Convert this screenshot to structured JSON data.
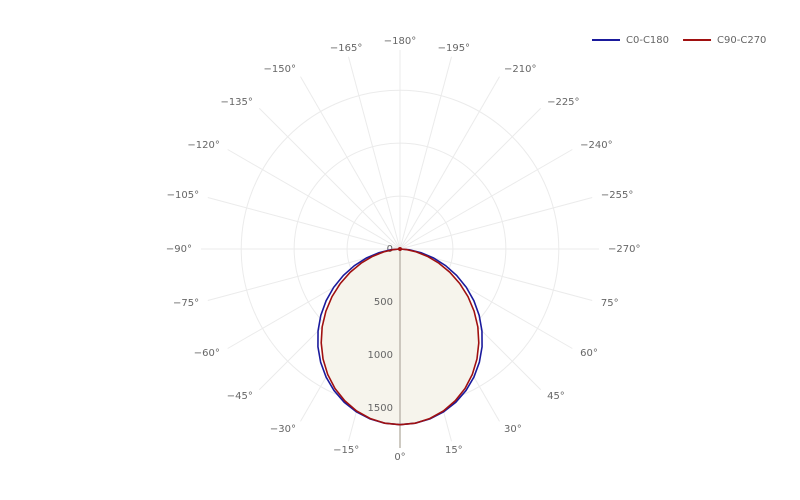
{
  "chart_data": {
    "type": "polar",
    "theta": [
      -90,
      -85,
      -80,
      -75,
      -70,
      -65,
      -60,
      -55,
      -50,
      -45,
      -40,
      -35,
      -30,
      -25,
      -20,
      -15,
      -10,
      -5,
      0,
      5,
      10,
      15,
      20,
      25,
      30,
      35,
      40,
      45,
      50,
      55,
      60,
      65,
      70,
      75,
      80,
      85,
      90
    ],
    "series": [
      {
        "name": "C0-C180",
        "color": "#1a1a9c",
        "values": [
          0,
          89,
          203,
          328,
          458,
          590,
          723,
          852,
          977,
          1095,
          1206,
          1307,
          1397,
          1475,
          1541,
          1592,
          1630,
          1652,
          1660,
          1652,
          1630,
          1592,
          1541,
          1475,
          1397,
          1307,
          1206,
          1095,
          977,
          852,
          723,
          590,
          458,
          328,
          203,
          89,
          0
        ]
      },
      {
        "name": "C90-C270",
        "color": "#a01010",
        "values": [
          0,
          62,
          156,
          268,
          390,
          519,
          651,
          784,
          914,
          1040,
          1158,
          1268,
          1367,
          1454,
          1526,
          1584,
          1626,
          1652,
          1660,
          1652,
          1626,
          1584,
          1526,
          1454,
          1367,
          1268,
          1158,
          1040,
          914,
          784,
          651,
          519,
          390,
          268,
          156,
          62,
          0
        ]
      }
    ],
    "fill_color": "#f6f4ec",
    "rlim": [
      0,
      1880
    ],
    "rticks": [
      0,
      500,
      1000,
      1500
    ],
    "thetaticks": [
      {
        "value": 0,
        "label": "0°"
      },
      {
        "value": 15,
        "label": "15°"
      },
      {
        "value": 30,
        "label": "30°"
      },
      {
        "value": 45,
        "label": "45°"
      },
      {
        "value": 60,
        "label": "60°"
      },
      {
        "value": 75,
        "label": "75°"
      },
      {
        "value": -270,
        "label": "−270°"
      },
      {
        "value": -255,
        "label": "−255°"
      },
      {
        "value": -240,
        "label": "−240°"
      },
      {
        "value": -225,
        "label": "−225°"
      },
      {
        "value": -210,
        "label": "−210°"
      },
      {
        "value": -195,
        "label": "−195°"
      },
      {
        "value": -180,
        "label": "−180°"
      },
      {
        "value": -165,
        "label": "−165°"
      },
      {
        "value": -150,
        "label": "−150°"
      },
      {
        "value": -135,
        "label": "−135°"
      },
      {
        "value": -120,
        "label": "−120°"
      },
      {
        "value": -105,
        "label": "−105°"
      },
      {
        "value": -90,
        "label": "−90°"
      },
      {
        "value": -75,
        "label": "−75°"
      },
      {
        "value": -60,
        "label": "−60°"
      },
      {
        "value": -45,
        "label": "−45°"
      },
      {
        "value": -30,
        "label": "−30°"
      },
      {
        "value": -15,
        "label": "−15°"
      }
    ],
    "grid": true
  }
}
